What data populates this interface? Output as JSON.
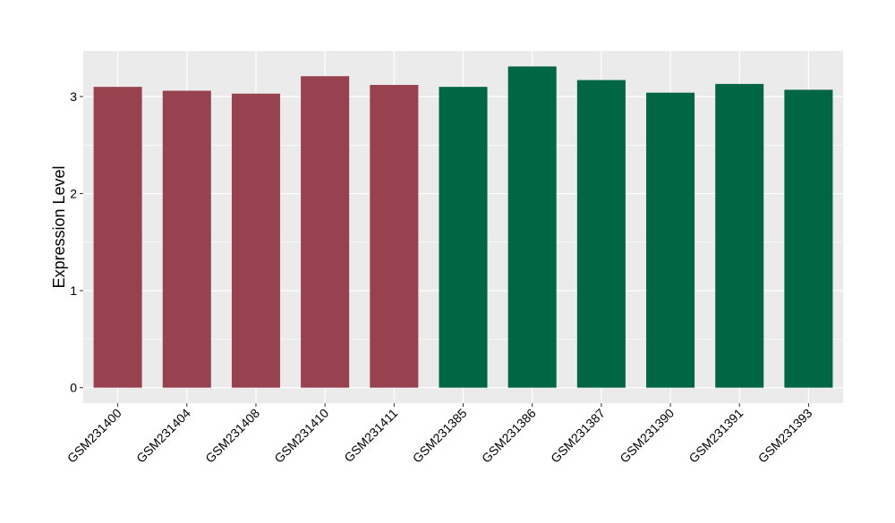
{
  "chart_data": {
    "type": "bar",
    "title": "",
    "xlabel": "",
    "ylabel": "Expression Level",
    "categories": [
      "GSM231400",
      "GSM231404",
      "GSM231408",
      "GSM231410",
      "GSM231411",
      "GSM231385",
      "GSM231386",
      "GSM231387",
      "GSM231390",
      "GSM231391",
      "GSM231393"
    ],
    "values": [
      3.1,
      3.06,
      3.03,
      3.21,
      3.12,
      3.1,
      3.31,
      3.17,
      3.04,
      3.13,
      3.07
    ],
    "bar_colors": [
      "#98414F",
      "#98414F",
      "#98414F",
      "#98414F",
      "#98414F",
      "#006644",
      "#006644",
      "#006644",
      "#006644",
      "#006644",
      "#006644"
    ],
    "ylim": [
      -0.16,
      3.47
    ],
    "y_ticks": [
      0,
      1,
      2,
      3
    ],
    "y_tick_labels": [
      "0",
      "1",
      "2",
      "3"
    ],
    "grid": true,
    "panel_background": "#EBEBEB",
    "grid_color": "#FFFFFF",
    "legend": "none"
  }
}
